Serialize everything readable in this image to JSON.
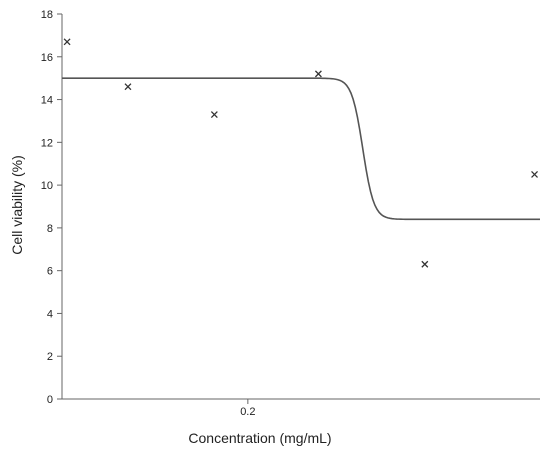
{
  "chart_data": {
    "type": "scatter",
    "title": "",
    "xlabel": "Concentration (mg/mL)",
    "ylabel": "Cell viability (%)",
    "ylim": [
      0,
      18
    ],
    "y_ticks": [
      "0",
      "2",
      "4",
      "6",
      "8",
      "10",
      "12",
      "14",
      "16",
      "18"
    ],
    "x_ticks": [
      "0.2"
    ],
    "grid": false,
    "legend": "none",
    "x_scale": "log",
    "points": [
      {
        "x": 0.06,
        "y": 16.7
      },
      {
        "x": 0.09,
        "y": 14.6
      },
      {
        "x": 0.16,
        "y": 13.3
      },
      {
        "x": 0.32,
        "y": 15.2
      },
      {
        "x": 0.65,
        "y": 6.3
      },
      {
        "x": 1.35,
        "y": 10.5
      }
    ],
    "fit_curve": {
      "type": "sigmoid",
      "top": 15,
      "bottom": 8.4,
      "inflection_x": 0.43
    },
    "colors": {
      "marker": "#333333",
      "curve": "#555555",
      "axis": "#666666"
    }
  }
}
